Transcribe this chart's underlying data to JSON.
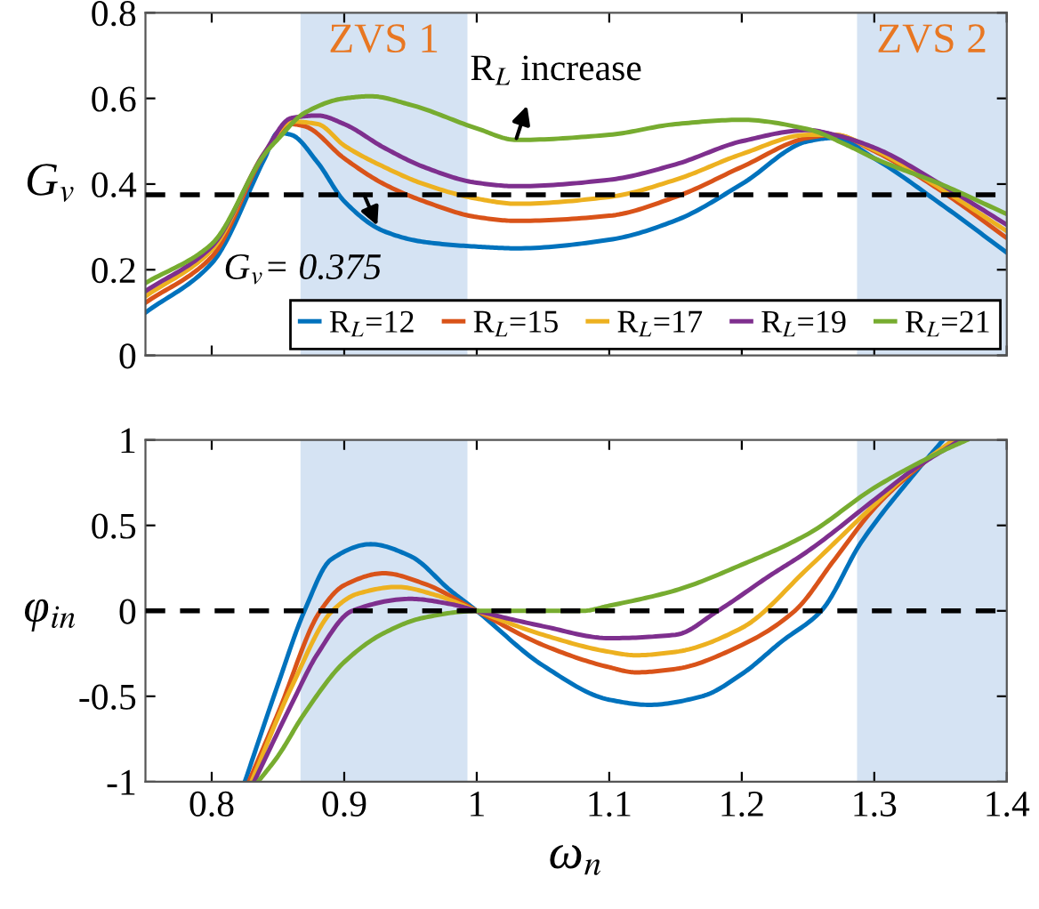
{
  "chart_data": [
    {
      "type": "line",
      "ylabel": "G$_{v}$",
      "xlim": [
        0.75,
        1.4
      ],
      "xticks": [
        0.8,
        0.9,
        1,
        1.1,
        1.2,
        1.3,
        1.4
      ],
      "ylim": [
        0,
        0.8
      ],
      "yticks": [
        0,
        0.2,
        0.4,
        0.6,
        0.8
      ],
      "tick_labels": "y",
      "grid": false,
      "legend": "bottom right",
      "line_style": "solid",
      "marker": "none",
      "bands": [
        {
          "axis": "x",
          "from": 0.867,
          "to": 0.993,
          "label": "ZVS 1",
          "color": "#d5e3f3"
        },
        {
          "axis": "x",
          "from": 1.287,
          "to": 1.4,
          "label": "ZVS 2",
          "color": "#d5e3f3"
        }
      ],
      "ref_lines": [
        {
          "axis": "y",
          "value": 0.375,
          "label": "G$_{v}$= 0.375",
          "color": "#000000",
          "line_style": "dashed"
        }
      ],
      "annotations": [
        {
          "text": "R$_{L}$ increase",
          "x": 1.03,
          "y": 0.503
        }
      ],
      "series": [
        {
          "name": "R$_{L}$=12",
          "color": "#0072bd",
          "x": [
            0.75,
            0.8,
            0.84,
            0.85,
            0.86,
            0.88,
            0.9,
            0.93,
            0.96,
            1.0,
            1.03,
            1.1,
            1.15,
            1.2,
            1.25,
            1.27,
            1.3,
            1.35,
            1.4
          ],
          "values": [
            0.1,
            0.215,
            0.46,
            0.52,
            0.515,
            0.45,
            0.36,
            0.29,
            0.265,
            0.254,
            0.25,
            0.27,
            0.315,
            0.4,
            0.5,
            0.508,
            0.46,
            0.354,
            0.24
          ]
        },
        {
          "name": "R$_{L}$=15",
          "color": "#d95319",
          "x": [
            0.75,
            0.8,
            0.84,
            0.86,
            0.87,
            0.9,
            0.93,
            0.96,
            1.0,
            1.03,
            1.1,
            1.15,
            1.2,
            1.25,
            1.27,
            1.3,
            1.35,
            1.4
          ],
          "values": [
            0.123,
            0.23,
            0.47,
            0.54,
            0.535,
            0.46,
            0.4,
            0.36,
            0.323,
            0.314,
            0.326,
            0.37,
            0.44,
            0.508,
            0.515,
            0.477,
            0.385,
            0.274
          ]
        },
        {
          "name": "R$_{L}$=17",
          "color": "#edb120",
          "x": [
            0.75,
            0.8,
            0.84,
            0.86,
            0.88,
            0.9,
            0.93,
            0.96,
            1.0,
            1.03,
            1.1,
            1.15,
            1.2,
            1.25,
            1.27,
            1.3,
            1.35,
            1.4
          ],
          "values": [
            0.138,
            0.246,
            0.474,
            0.546,
            0.54,
            0.49,
            0.44,
            0.4,
            0.366,
            0.354,
            0.37,
            0.41,
            0.47,
            0.515,
            0.515,
            0.48,
            0.39,
            0.29
          ]
        },
        {
          "name": "R$_{L}$=19",
          "color": "#7e2f8e",
          "x": [
            0.75,
            0.8,
            0.84,
            0.86,
            0.88,
            0.9,
            0.93,
            0.96,
            1.0,
            1.03,
            1.1,
            1.15,
            1.2,
            1.25,
            1.27,
            1.3,
            1.35,
            1.4
          ],
          "values": [
            0.15,
            0.254,
            0.474,
            0.554,
            0.56,
            0.54,
            0.485,
            0.44,
            0.403,
            0.395,
            0.41,
            0.446,
            0.5,
            0.526,
            0.515,
            0.485,
            0.4,
            0.305
          ]
        },
        {
          "name": "R$_{L}$=21",
          "color": "#77ac30",
          "x": [
            0.75,
            0.8,
            0.84,
            0.85,
            0.87,
            0.9,
            0.92,
            0.95,
            1.0,
            1.03,
            1.1,
            1.15,
            1.2,
            1.25,
            1.28,
            1.3,
            1.35,
            1.4
          ],
          "values": [
            0.169,
            0.26,
            0.47,
            0.505,
            0.566,
            0.6,
            0.605,
            0.585,
            0.53,
            0.503,
            0.515,
            0.54,
            0.55,
            0.528,
            0.49,
            0.46,
            0.4,
            0.33
          ]
        }
      ]
    },
    {
      "type": "line",
      "xlabel": "ω$_{n}$",
      "ylabel": "φ$_{in}$",
      "xlim": [
        0.75,
        1.4
      ],
      "xticks": [
        0.8,
        0.9,
        1,
        1.1,
        1.2,
        1.3,
        1.4
      ],
      "ylim": [
        -1,
        1
      ],
      "yticks": [
        -1,
        -0.5,
        0,
        0.5,
        1
      ],
      "grid": false,
      "line_style": "solid",
      "marker": "none",
      "bands": [
        {
          "axis": "x",
          "from": 0.867,
          "to": 0.993,
          "color": "#d5e3f3"
        },
        {
          "axis": "x",
          "from": 1.287,
          "to": 1.4,
          "color": "#d5e3f3"
        }
      ],
      "ref_lines": [
        {
          "axis": "y",
          "value": 0,
          "color": "#000000",
          "line_style": "dashed"
        }
      ],
      "series": [
        {
          "color": "#0072bd",
          "x": [
            0.825,
            0.85,
            0.87,
            0.89,
            0.92,
            0.95,
            0.98,
            1.0,
            1.05,
            1.1,
            1.13,
            1.17,
            1.2,
            1.23,
            1.26,
            1.29,
            1.33,
            1.352
          ],
          "values": [
            -1,
            -0.43,
            0,
            0.3,
            0.39,
            0.32,
            0.12,
            0,
            -0.32,
            -0.52,
            -0.55,
            -0.5,
            -0.37,
            -0.18,
            0,
            0.4,
            0.8,
            1
          ]
        },
        {
          "color": "#d95319",
          "x": [
            0.828,
            0.85,
            0.882,
            0.9,
            0.93,
            0.96,
            1.0,
            1.05,
            1.1,
            1.12,
            1.15,
            1.2,
            1.24,
            1.27,
            1.3,
            1.33,
            1.36
          ],
          "values": [
            -1,
            -0.6,
            0,
            0.15,
            0.22,
            0.16,
            0,
            -0.2,
            -0.33,
            -0.36,
            -0.34,
            -0.2,
            0,
            0.3,
            0.6,
            0.82,
            1
          ]
        },
        {
          "color": "#edb120",
          "x": [
            0.83,
            0.86,
            0.891,
            0.91,
            0.94,
            0.97,
            1.0,
            1.05,
            1.1,
            1.12,
            1.15,
            1.2,
            1.25,
            1.3,
            1.33,
            1.36
          ],
          "values": [
            -1,
            -0.45,
            0,
            0.1,
            0.14,
            0.09,
            0,
            -0.14,
            -0.24,
            -0.26,
            -0.24,
            -0.1,
            0.25,
            0.62,
            0.83,
            1
          ]
        },
        {
          "color": "#7e2f8e",
          "x": [
            0.832,
            0.86,
            0.88,
            0.906,
            0.95,
            0.98,
            1.0,
            1.05,
            1.1,
            1.15,
            1.182,
            1.22,
            1.25,
            1.3,
            1.33,
            1.365
          ],
          "values": [
            -1,
            -0.55,
            -0.25,
            0,
            0.07,
            0.04,
            0,
            -0.09,
            -0.16,
            -0.14,
            0,
            0.2,
            0.35,
            0.65,
            0.83,
            1
          ]
        },
        {
          "color": "#77ac30",
          "x": [
            0.835,
            0.85,
            0.87,
            0.9,
            0.93,
            0.96,
            1.0,
            1.05,
            1.08,
            1.1,
            1.15,
            1.2,
            1.25,
            1.3,
            1.35,
            1.37
          ],
          "values": [
            -1,
            -0.85,
            -0.6,
            -0.3,
            -0.13,
            -0.04,
            0,
            0,
            0,
            0.03,
            0.12,
            0.27,
            0.45,
            0.72,
            0.93,
            1
          ]
        }
      ]
    }
  ]
}
